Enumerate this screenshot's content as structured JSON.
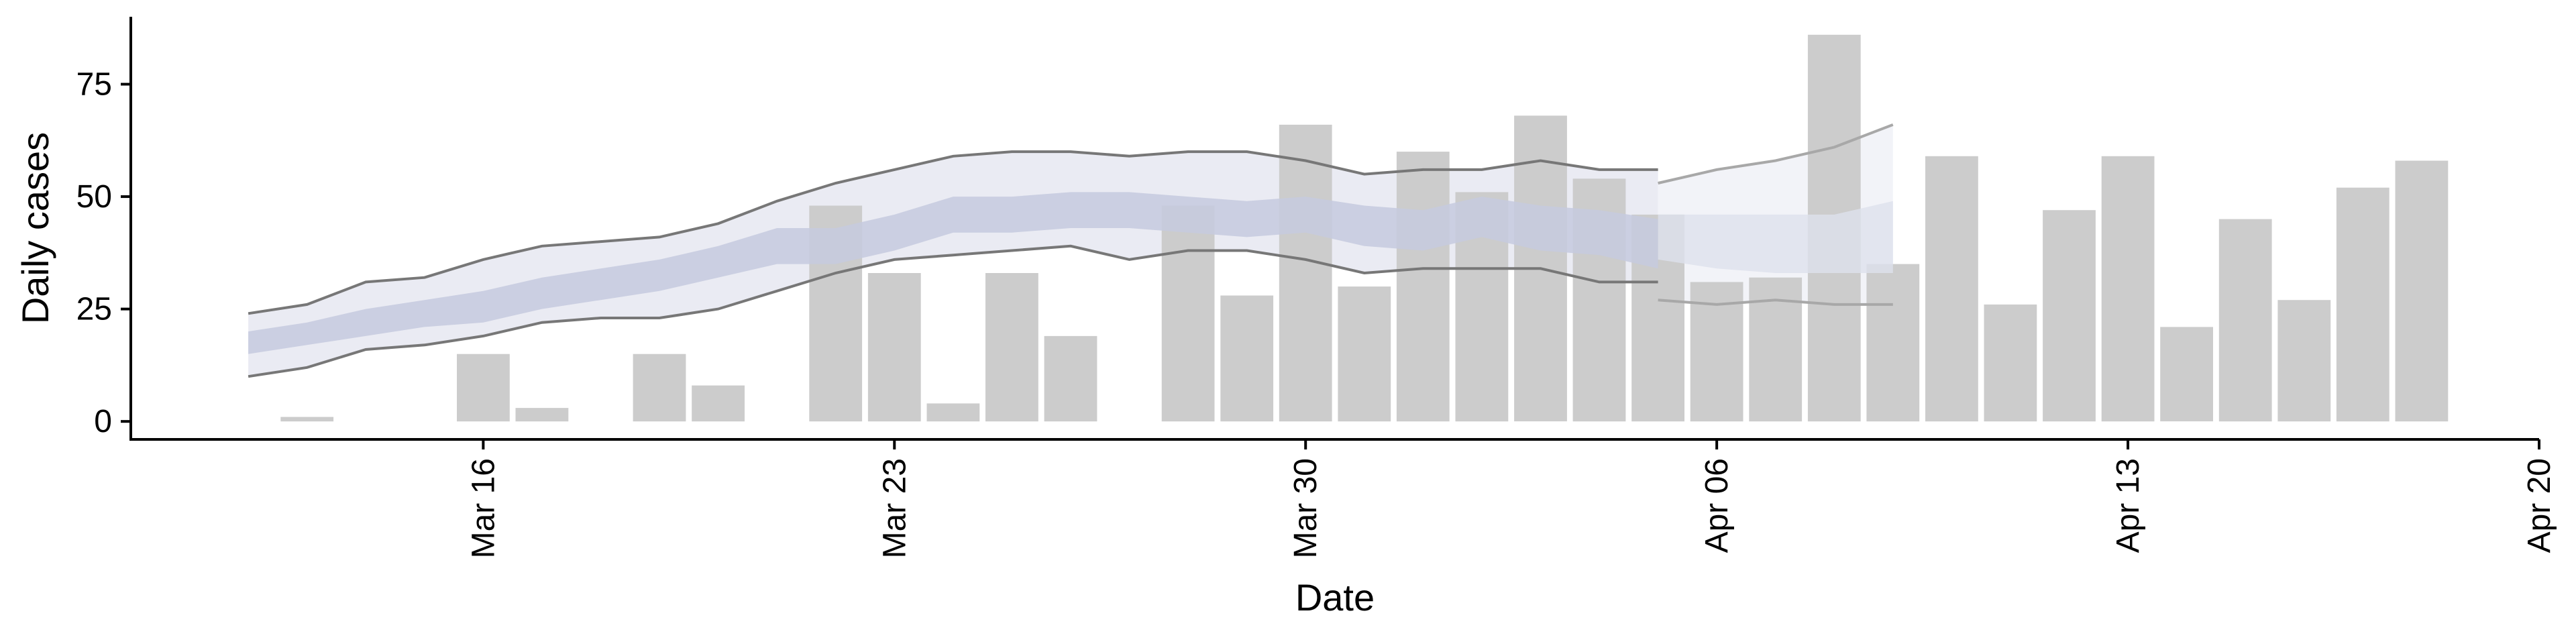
{
  "chart_data": {
    "type": "bar",
    "xlabel": "Date",
    "ylabel": "Daily cases",
    "x_tick_labels": [
      "Mar 16",
      "Mar 23",
      "Mar 30",
      "Apr 06",
      "Apr 13",
      "Apr 20"
    ],
    "x_ticks": [
      "2020-03-16",
      "2020-03-23",
      "2020-03-30",
      "2020-04-06",
      "2020-04-13",
      "2020-04-20"
    ],
    "y_ticks": [
      0,
      25,
      50,
      75
    ],
    "xlim": [
      "2020-03-10",
      "2020-04-20"
    ],
    "ylim": [
      -4,
      90
    ],
    "grid": false,
    "legend": "none",
    "bars": {
      "dates": [
        "2020-03-13",
        "2020-03-14",
        "2020-03-15",
        "2020-03-16",
        "2020-03-17",
        "2020-03-18",
        "2020-03-19",
        "2020-03-20",
        "2020-03-21",
        "2020-03-22",
        "2020-03-23",
        "2020-03-24",
        "2020-03-25",
        "2020-03-26",
        "2020-03-27",
        "2020-03-28",
        "2020-03-29",
        "2020-03-30",
        "2020-03-31",
        "2020-04-01",
        "2020-04-02",
        "2020-04-03",
        "2020-04-04",
        "2020-04-05",
        "2020-04-06",
        "2020-04-07",
        "2020-04-08",
        "2020-04-09",
        "2020-04-10",
        "2020-04-11",
        "2020-04-12",
        "2020-04-13",
        "2020-04-14",
        "2020-04-15",
        "2020-04-16",
        "2020-04-17",
        "2020-04-18"
      ],
      "values": [
        1,
        0,
        0,
        15,
        3,
        0,
        15,
        8,
        0,
        48,
        33,
        4,
        33,
        19,
        0,
        48,
        28,
        66,
        30,
        60,
        51,
        68,
        54,
        46,
        31,
        32,
        86,
        35,
        59,
        26,
        47,
        59,
        21,
        45,
        27,
        52,
        58
      ]
    },
    "band": {
      "dates": [
        "2020-03-12",
        "2020-03-13",
        "2020-03-14",
        "2020-03-15",
        "2020-03-16",
        "2020-03-17",
        "2020-03-18",
        "2020-03-19",
        "2020-03-20",
        "2020-03-21",
        "2020-03-22",
        "2020-03-23",
        "2020-03-24",
        "2020-03-25",
        "2020-03-26",
        "2020-03-27",
        "2020-03-28",
        "2020-03-29",
        "2020-03-30",
        "2020-03-31",
        "2020-04-01",
        "2020-04-02",
        "2020-04-03",
        "2020-04-04",
        "2020-04-05",
        "2020-04-06",
        "2020-04-07",
        "2020-04-08",
        "2020-04-09"
      ],
      "outer_upper": [
        24,
        26,
        31,
        32,
        36,
        39,
        40,
        41,
        44,
        49,
        53,
        56,
        59,
        60,
        60,
        59,
        60,
        60,
        58,
        55,
        56,
        56,
        58,
        56,
        56,
        53,
        56,
        58,
        61
      ],
      "outer_lower": [
        10,
        12,
        16,
        17,
        19,
        22,
        23,
        23,
        25,
        29,
        33,
        36,
        37,
        38,
        39,
        36,
        38,
        38,
        36,
        33,
        34,
        34,
        34,
        31,
        31,
        27,
        26,
        27,
        26
      ],
      "inner_upper": [
        20,
        22,
        25,
        27,
        29,
        32,
        34,
        36,
        39,
        43,
        43,
        46,
        50,
        50,
        51,
        51,
        50,
        49,
        50,
        48,
        47,
        50,
        48,
        47,
        45,
        46,
        46,
        46,
        46
      ],
      "inner_lower": [
        15,
        17,
        19,
        21,
        22,
        25,
        27,
        29,
        32,
        35,
        35,
        38,
        42,
        42,
        43,
        43,
        42,
        41,
        42,
        39,
        38,
        41,
        38,
        37,
        34,
        36,
        34,
        33,
        33
      ],
      "forecast_start": "2020-04-05",
      "forecast_outer_upper": [
        53,
        56,
        58,
        61,
        66
      ],
      "forecast_outer_lower": [
        27,
        26,
        27,
        26,
        26
      ],
      "forecast_inner_upper": [
        46,
        46,
        46,
        46,
        49
      ],
      "forecast_inner_lower": [
        36,
        34,
        33,
        33,
        33
      ]
    },
    "colors": {
      "bars": "#cccccc",
      "outer_band": "#eaebf3",
      "inner_band": "#c5cade",
      "forecast_outer_band": "#f2f3f8",
      "forecast_inner_band": "#dde1ec",
      "band_line": "#777777",
      "forecast_line": "#a8a8a8",
      "axis": "#000000"
    }
  }
}
